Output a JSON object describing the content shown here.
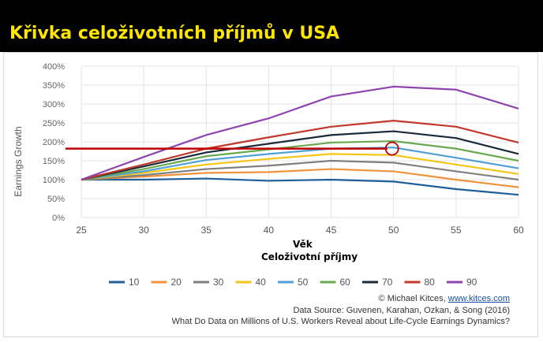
{
  "title": "Křivka celoživotních příjmů v USA",
  "annotation_x": "Věk",
  "annotation_sub": "Celoživotní příjmy",
  "credit_author": "© Michael Kitces,",
  "credit_url": "www.kitces.com",
  "source_line": "Data Source: Guvenen, Karahan, Ozkan, & Song (2016)",
  "paper_line": "What Do Data on Millions of U.S. Workers Reveal about Life-Cycle Earnings Dynamics?",
  "chart_data": {
    "type": "line",
    "ylabel": "Earnings Growth",
    "x": [
      25,
      30,
      35,
      40,
      45,
      50,
      55,
      60
    ],
    "x_ticks": [
      "25",
      "30",
      "35",
      "40",
      "45",
      "50",
      "55",
      "60"
    ],
    "y_ticks": [
      "0%",
      "50%",
      "100%",
      "150%",
      "200%",
      "250%",
      "300%",
      "350%",
      "400%"
    ],
    "xlim": [
      25,
      60
    ],
    "ylim": [
      0,
      400
    ],
    "grid": true,
    "legend_position": "bottom",
    "series": [
      {
        "name": "10",
        "color": "#1f5f99",
        "values": [
          100,
          100,
          103,
          97,
          100,
          95,
          75,
          60
        ]
      },
      {
        "name": "20",
        "color": "#f0923a",
        "values": [
          100,
          108,
          118,
          120,
          128,
          122,
          100,
          80
        ]
      },
      {
        "name": "30",
        "color": "#7f7f7f",
        "values": [
          100,
          112,
          128,
          137,
          150,
          145,
          122,
          100
        ]
      },
      {
        "name": "40",
        "color": "#f5c518",
        "values": [
          100,
          118,
          140,
          155,
          168,
          165,
          140,
          115
        ]
      },
      {
        "name": "50",
        "color": "#4fa0d8",
        "values": [
          100,
          122,
          152,
          168,
          182,
          185,
          158,
          130
        ]
      },
      {
        "name": "60",
        "color": "#6aa84f",
        "values": [
          100,
          128,
          162,
          180,
          198,
          202,
          182,
          150
        ]
      },
      {
        "name": "70",
        "color": "#1a2a3a",
        "values": [
          100,
          135,
          172,
          195,
          218,
          228,
          210,
          168
        ]
      },
      {
        "name": "80",
        "color": "#c0392b",
        "values": [
          100,
          140,
          182,
          212,
          240,
          256,
          240,
          198
        ]
      },
      {
        "name": "90",
        "color": "#8e44ad",
        "values": [
          100,
          160,
          218,
          262,
          320,
          346,
          338,
          288
        ]
      }
    ],
    "highlight": {
      "x": 50,
      "y": 182,
      "color": "#c00000"
    }
  }
}
